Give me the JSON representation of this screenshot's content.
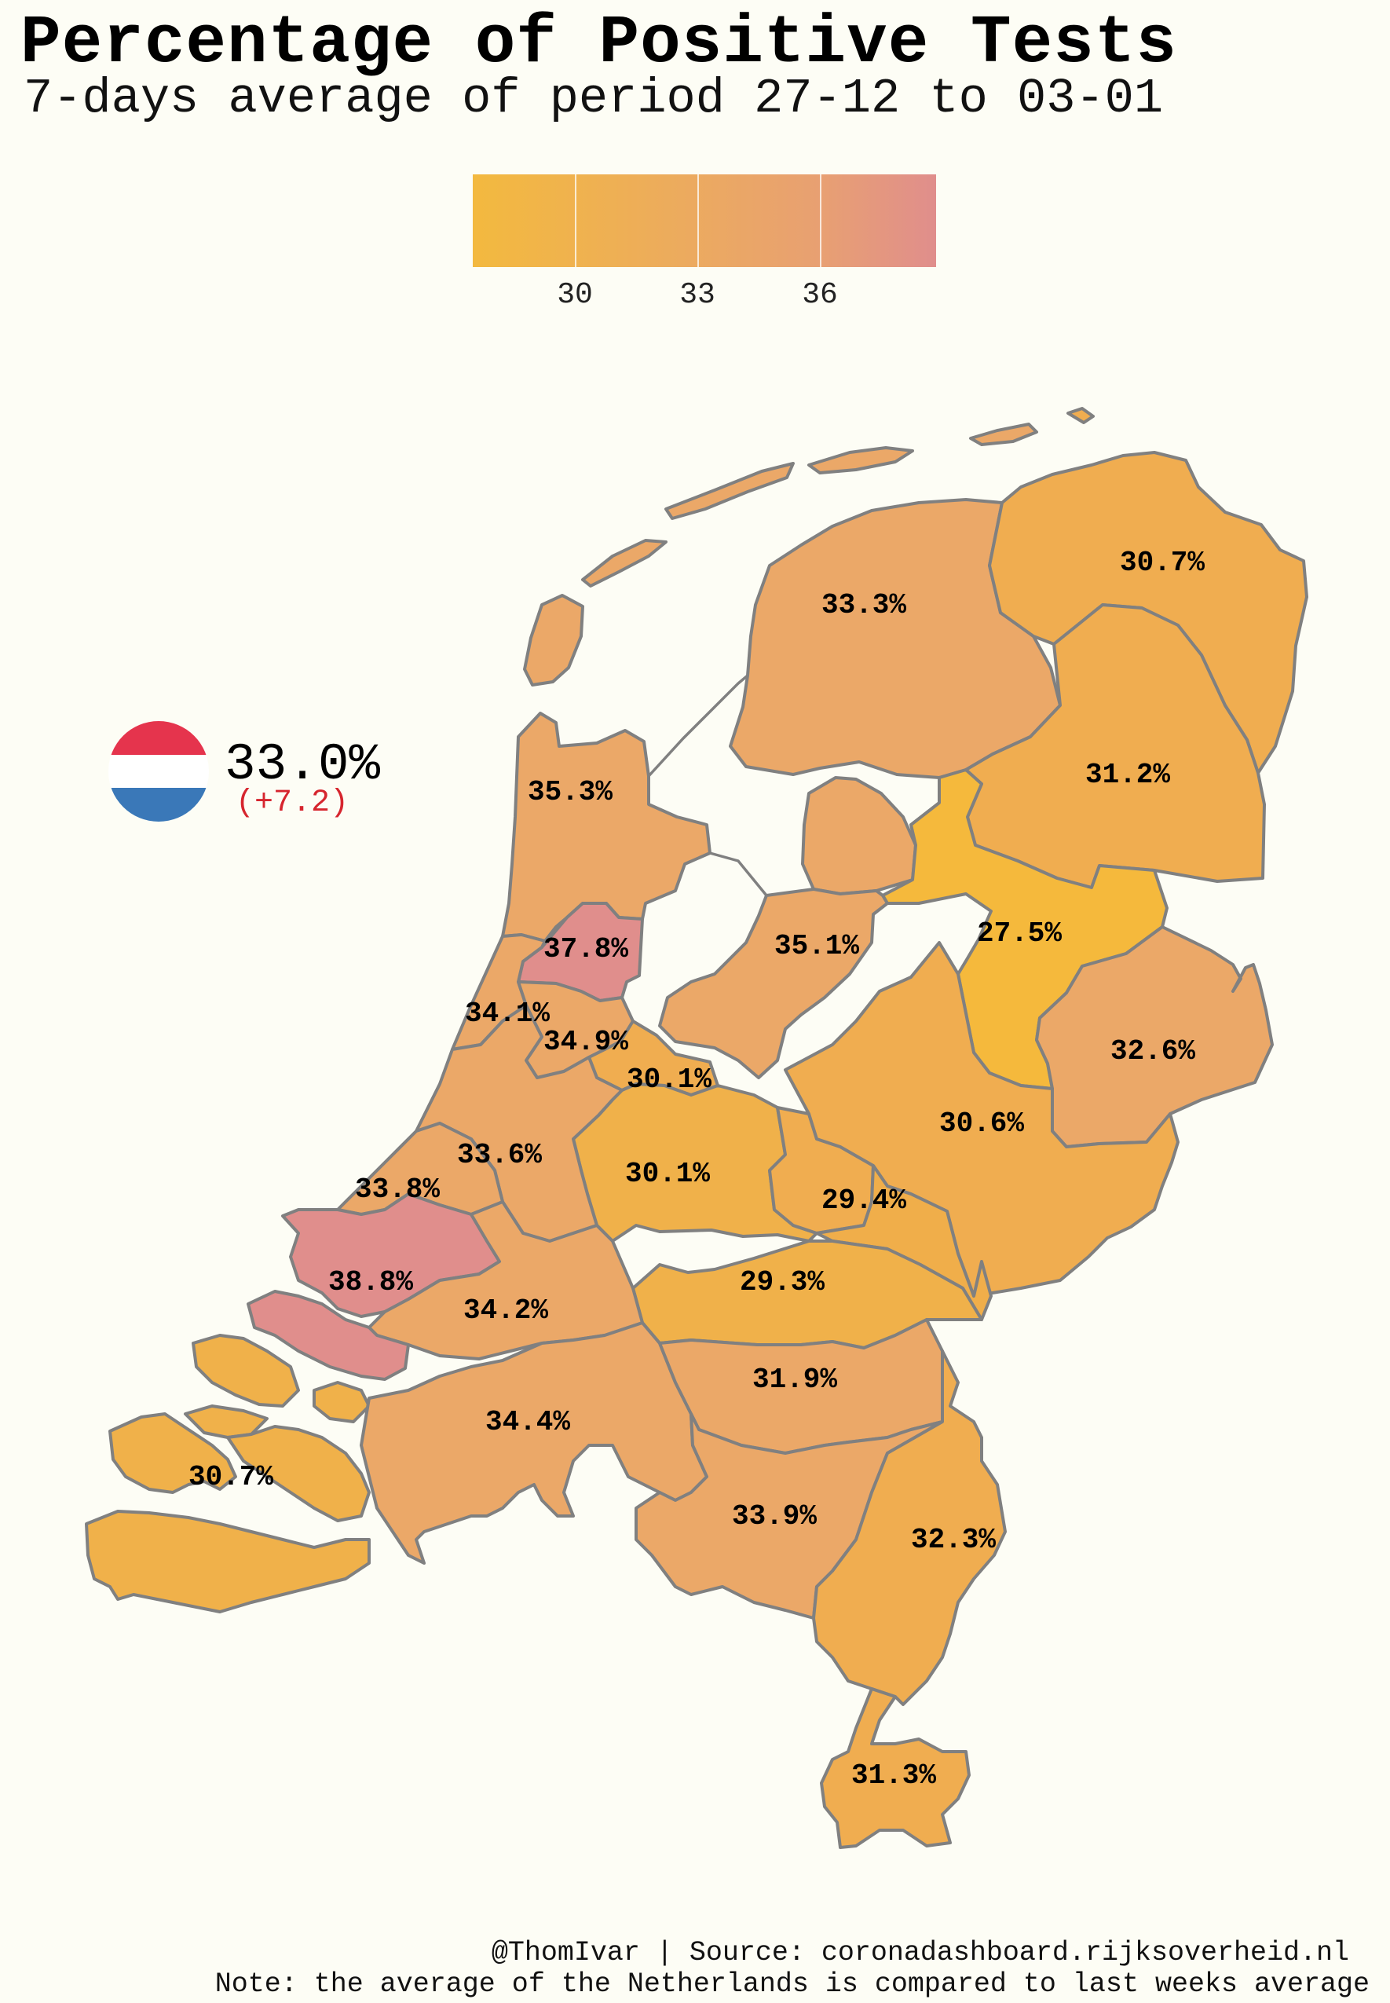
{
  "header": {
    "title": "Percentage of Positive Tests",
    "subtitle": "7-days average of period 27-12 to 03-01"
  },
  "legend": {
    "ticks": [
      {
        "value": 30,
        "label": "30"
      },
      {
        "value": 33,
        "label": "33"
      },
      {
        "value": 36,
        "label": "36"
      }
    ],
    "min": 27.5,
    "max": 38.8,
    "colors": {
      "low": "#f3b93f",
      "mid": "#eba868",
      "high": "#e08e8c"
    }
  },
  "national": {
    "value": "33.0%",
    "change": "(+7.2)",
    "flag_colors": [
      "#e5344d",
      "#ffffff",
      "#3a78b8"
    ]
  },
  "regions": [
    {
      "label": "30.7%",
      "value": 30.7
    },
    {
      "label": "33.3%",
      "value": 33.3
    },
    {
      "label": "31.2%",
      "value": 31.2
    },
    {
      "label": "35.3%",
      "value": 35.3
    },
    {
      "label": "27.5%",
      "value": 27.5
    },
    {
      "label": "37.8%",
      "value": 37.8
    },
    {
      "label": "35.1%",
      "value": 35.1
    },
    {
      "label": "34.1%",
      "value": 34.1
    },
    {
      "label": "34.9%",
      "value": 34.9
    },
    {
      "label": "32.6%",
      "value": 32.6
    },
    {
      "label": "30.1%",
      "value": 30.1
    },
    {
      "label": "30.6%",
      "value": 30.6
    },
    {
      "label": "33.6%",
      "value": 33.6
    },
    {
      "label": "30.1%",
      "value": 30.1
    },
    {
      "label": "33.8%",
      "value": 33.8
    },
    {
      "label": "29.4%",
      "value": 29.4
    },
    {
      "label": "38.8%",
      "value": 38.8
    },
    {
      "label": "29.3%",
      "value": 29.3
    },
    {
      "label": "34.2%",
      "value": 34.2
    },
    {
      "label": "31.9%",
      "value": 31.9
    },
    {
      "label": "34.4%",
      "value": 34.4
    },
    {
      "label": "30.7%",
      "value": 30.7
    },
    {
      "label": "33.9%",
      "value": 33.9
    },
    {
      "label": "32.3%",
      "value": 32.3
    },
    {
      "label": "31.3%",
      "value": 31.3
    }
  ],
  "footer": {
    "credit": "@ThomIvar | Source: coronadashboard.rijksoverheid.nl",
    "note": "Note: the average of the Netherlands is compared to last weeks average"
  }
}
